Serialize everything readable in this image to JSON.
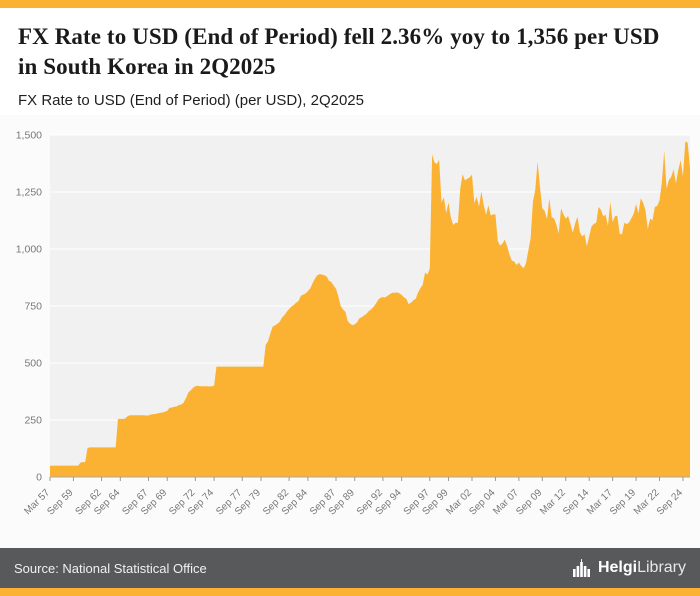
{
  "accent_color": "#FBB232",
  "header": {
    "title": "FX Rate to USD (End of Period) fell 2.36% yoy to 1,356 per USD in South Korea in 2Q2025",
    "subtitle": "FX Rate to USD (End of Period) (per USD), 2Q2025"
  },
  "footer": {
    "source": "Source: National Statistical Office",
    "brand_bold": "Helgi",
    "brand_regular": "Library"
  },
  "chart_data": {
    "type": "area",
    "title": "FX Rate to USD (End of Period) (per USD), 2Q2025",
    "series_name": "FX Rate to USD (End of Period), South Korea, per USD",
    "freq": "quarterly",
    "start": "1957Q1",
    "end": "2025Q2",
    "ylim": [
      0,
      1500
    ],
    "fill_color": "#FBB232",
    "plot_bg": "#F1F1F2",
    "grid_color": "#FFFFFF",
    "axis_color": "#AAAAAA",
    "tick_label_color": "#777777",
    "y_ticks": [
      {
        "value": 0,
        "label": "0"
      },
      {
        "value": 250,
        "label": "250"
      },
      {
        "value": 500,
        "label": "500"
      },
      {
        "value": 750,
        "label": "750"
      },
      {
        "value": 1000,
        "label": "1,000"
      },
      {
        "value": 1250,
        "label": "1,250"
      },
      {
        "value": 1500,
        "label": "1,500"
      }
    ],
    "x_ticks": [
      {
        "label": "Mar 57",
        "index": 0
      },
      {
        "label": "Sep 59",
        "index": 10
      },
      {
        "label": "Sep 62",
        "index": 22
      },
      {
        "label": "Sep 64",
        "index": 30
      },
      {
        "label": "Sep 67",
        "index": 42
      },
      {
        "label": "Sep 69",
        "index": 50
      },
      {
        "label": "Sep 72",
        "index": 62
      },
      {
        "label": "Sep 74",
        "index": 70
      },
      {
        "label": "Sep 77",
        "index": 82
      },
      {
        "label": "Sep 79",
        "index": 90
      },
      {
        "label": "Sep 82",
        "index": 102
      },
      {
        "label": "Sep 84",
        "index": 110
      },
      {
        "label": "Sep 87",
        "index": 122
      },
      {
        "label": "Sep 89",
        "index": 130
      },
      {
        "label": "Sep 92",
        "index": 142
      },
      {
        "label": "Sep 94",
        "index": 150
      },
      {
        "label": "Sep 97",
        "index": 162
      },
      {
        "label": "Sep 99",
        "index": 170
      },
      {
        "label": "Mar 02",
        "index": 180
      },
      {
        "label": "Sep 04",
        "index": 190
      },
      {
        "label": "Mar 07",
        "index": 200
      },
      {
        "label": "Sep 09",
        "index": 210
      },
      {
        "label": "Mar 12",
        "index": 220
      },
      {
        "label": "Sep 14",
        "index": 230
      },
      {
        "label": "Mar 17",
        "index": 240
      },
      {
        "label": "Sep 19",
        "index": 250
      },
      {
        "label": "Mar 22",
        "index": 260
      },
      {
        "label": "Sep 24",
        "index": 270
      }
    ],
    "values": [
      50,
      50,
      50,
      50,
      50,
      50,
      50,
      50,
      50,
      50,
      50,
      50,
      50,
      63,
      65,
      65,
      127,
      130,
      130,
      130,
      130,
      130,
      130,
      130,
      130,
      130,
      130,
      130,
      130,
      255,
      255,
      255,
      256,
      266,
      271,
      271,
      271,
      271,
      271,
      271,
      271,
      270,
      270,
      274,
      276,
      277,
      279,
      281,
      283,
      286,
      290,
      304,
      305,
      308,
      310,
      316,
      318,
      326,
      346,
      370,
      380,
      391,
      398,
      400,
      398,
      398,
      398,
      398,
      397,
      398,
      400,
      484,
      484,
      484,
      484,
      484,
      484,
      484,
      484,
      484,
      484,
      484,
      484,
      484,
      484,
      484,
      484,
      484,
      484,
      484,
      484,
      484,
      580,
      595,
      630,
      660,
      665,
      672,
      681,
      700,
      710,
      725,
      737,
      748,
      755,
      765,
      772,
      795,
      800,
      805,
      815,
      827,
      850,
      870,
      885,
      890,
      888,
      885,
      880,
      861,
      855,
      840,
      825,
      792,
      750,
      735,
      725,
      684,
      672,
      666,
      670,
      679,
      696,
      701,
      709,
      716,
      728,
      735,
      746,
      760,
      778,
      786,
      789,
      788,
      795,
      802,
      808,
      808,
      810,
      806,
      799,
      788,
      781,
      758,
      765,
      775,
      782,
      810,
      828,
      844,
      897,
      888,
      914,
      1415,
      1380,
      1373,
      1391,
      1204,
      1227,
      1158,
      1204,
      1138,
      1106,
      1115,
      1115,
      1265,
      1328,
      1301,
      1308,
      1314,
      1326,
      1201,
      1228,
      1186,
      1253,
      1193,
      1150,
      1192,
      1147,
      1152,
      1152,
      1035,
      1015,
      1024,
      1041,
      1013,
      975,
      949,
      945,
      930,
      941,
      926,
      915,
      936,
      991,
      1046,
      1207,
      1260,
      1383,
      1273,
      1178,
      1168,
      1131,
      1222,
      1140,
      1135,
      1107,
      1068,
      1178,
      1152,
      1133,
      1145,
      1111,
      1071,
      1112,
      1142,
      1075,
      1055,
      1065,
      1012,
      1055,
      1099,
      1110,
      1115,
      1185,
      1172,
      1143,
      1151,
      1101,
      1208,
      1118,
      1144,
      1146,
      1067,
      1064,
      1115,
      1109,
      1116,
      1135,
      1155,
      1197,
      1156,
      1222,
      1203,
      1170,
      1088,
      1133,
      1126,
      1184,
      1189,
      1212,
      1292,
      1431,
      1265,
      1302,
      1317,
      1349,
      1288,
      1347,
      1389,
      1319,
      1472,
      1466,
      1356
    ]
  }
}
